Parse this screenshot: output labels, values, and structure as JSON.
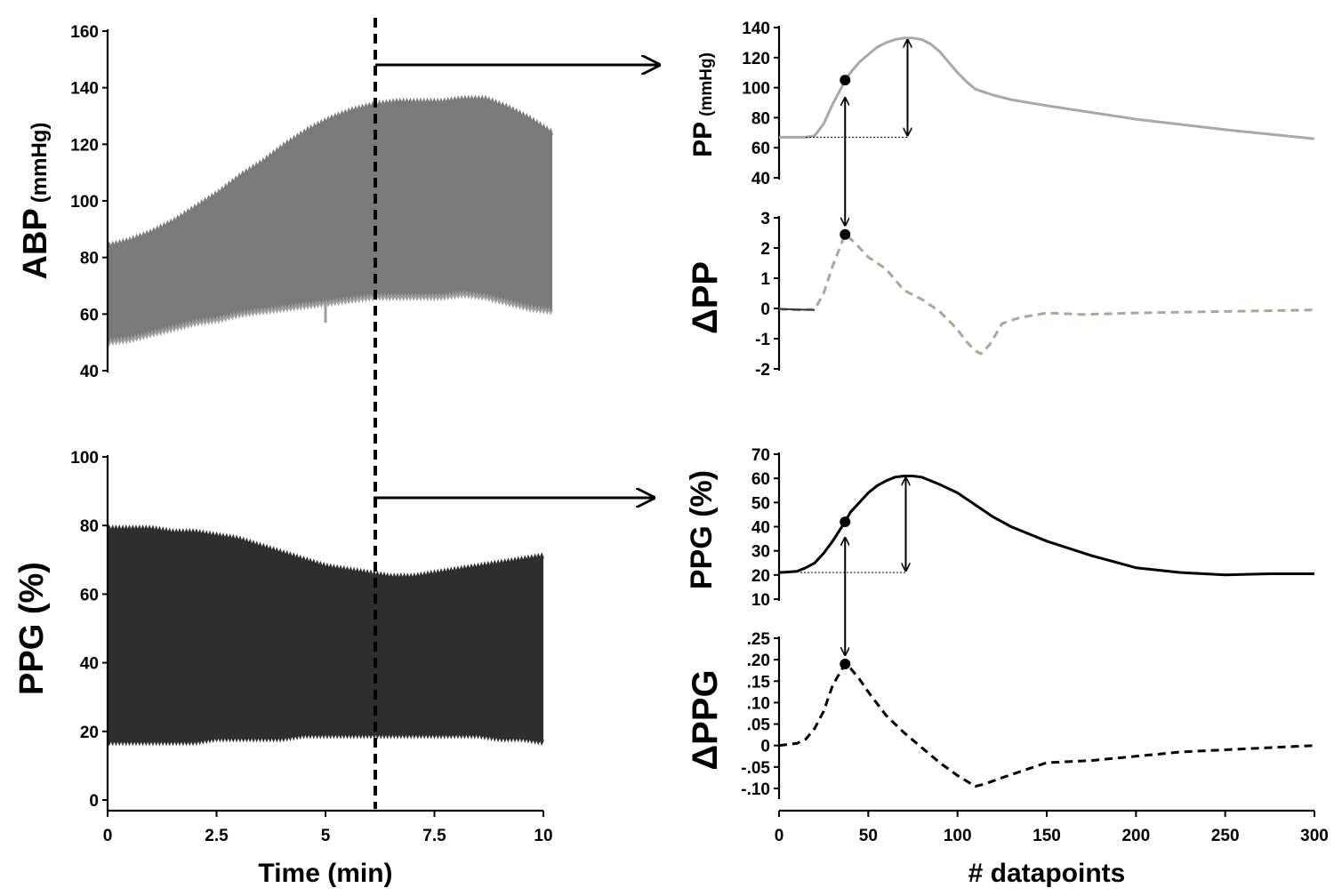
{
  "colors": {
    "abp": "#7a7a7a",
    "abp_light": "#9e9e9e",
    "ppg": "#2e2e2e",
    "pp_line": "#a8a8a8",
    "dpp_line": "#a0ab9a",
    "black": "#000000"
  },
  "chart_data": [
    {
      "id": "abp",
      "type": "area",
      "ylabel_main": "ABP",
      "ylabel_unit": "(mmHg)",
      "xlabel": "",
      "xlim": [
        0,
        10
      ],
      "ylim": [
        40,
        160
      ],
      "yticks": [
        "40",
        "60",
        "80",
        "100",
        "120",
        "140",
        "160"
      ],
      "xticks": [],
      "x": [
        0,
        0.5,
        1,
        1.5,
        2,
        2.5,
        3,
        3.5,
        4,
        4.5,
        5,
        5.5,
        6,
        6.5,
        7,
        7.5,
        8,
        8.5,
        9,
        9.5,
        10
      ],
      "upper": [
        84,
        86,
        89,
        93,
        98,
        103,
        109,
        114,
        120,
        125,
        129,
        132,
        134,
        135,
        135,
        135,
        136,
        136,
        133,
        129,
        124
      ],
      "lower": [
        50,
        51,
        53,
        55,
        57,
        58,
        60,
        61,
        62,
        63,
        64,
        65,
        66,
        66,
        66,
        66,
        67,
        66,
        64,
        62,
        61
      ]
    },
    {
      "id": "ppg",
      "type": "area",
      "ylabel_main": "PPG (%)",
      "xlabel": "Time (min)",
      "xlim": [
        0,
        10
      ],
      "ylim": [
        0,
        100
      ],
      "yticks": [
        "0",
        "20",
        "40",
        "60",
        "80",
        "100"
      ],
      "xticks": [
        "0",
        "2.5",
        "5",
        "7.5",
        "10"
      ],
      "x": [
        0,
        0.5,
        1,
        1.5,
        2,
        2.5,
        3,
        3.5,
        4,
        4.5,
        5,
        5.5,
        6,
        6.5,
        7,
        7.5,
        8,
        8.5,
        9,
        9.5,
        10
      ],
      "upper": [
        79,
        79,
        79,
        78,
        78,
        77,
        76,
        74,
        72,
        70,
        68,
        67,
        66,
        65,
        65,
        66,
        67,
        68,
        69,
        70,
        71
      ],
      "lower": [
        17,
        17,
        17,
        17,
        17,
        18,
        18,
        18,
        18,
        19,
        19,
        19,
        19,
        19,
        19,
        19,
        19,
        19,
        18,
        18,
        17
      ]
    },
    {
      "id": "pp",
      "type": "line",
      "ylabel_main": "PP",
      "ylabel_unit": "(mmHg)",
      "xlim": [
        0,
        300
      ],
      "ylim": [
        40,
        140
      ],
      "yticks": [
        "40",
        "60",
        "80",
        "100",
        "120",
        "140"
      ],
      "x": [
        0,
        15,
        20,
        25,
        30,
        35,
        37,
        40,
        45,
        50,
        55,
        60,
        65,
        70,
        75,
        80,
        85,
        90,
        95,
        100,
        105,
        110,
        115,
        120,
        130,
        150,
        200,
        250,
        300
      ],
      "y": [
        67,
        67,
        68,
        76,
        89,
        100,
        105,
        110,
        117,
        122,
        127,
        130,
        132,
        133,
        133,
        132,
        129,
        124,
        117,
        110,
        104,
        99,
        97,
        95,
        92,
        88,
        79,
        72,
        66
      ],
      "baseline": 67,
      "marker": {
        "x": 37,
        "y": 105
      },
      "arrow_x": 72
    },
    {
      "id": "dpp",
      "type": "line",
      "ylabel_main": "ΔPP",
      "xlim": [
        0,
        300
      ],
      "ylim": [
        -2,
        3
      ],
      "yticks": [
        "-2",
        "-1",
        "0",
        "1",
        "2",
        "3"
      ],
      "x": [
        0,
        10,
        20,
        25,
        30,
        37,
        42,
        50,
        55,
        60,
        70,
        80,
        90,
        100,
        105,
        110,
        113,
        118,
        125,
        135,
        150,
        170,
        200,
        250,
        300
      ],
      "y": [
        -0.02,
        -0.05,
        -0.03,
        0.5,
        1.4,
        2.45,
        2.2,
        1.7,
        1.5,
        1.3,
        0.6,
        0.3,
        -0.1,
        -0.7,
        -1.1,
        -1.4,
        -1.5,
        -1.2,
        -0.5,
        -0.3,
        -0.15,
        -0.2,
        -0.15,
        -0.1,
        -0.05
      ],
      "marker": {
        "x": 37,
        "y": 2.45
      }
    },
    {
      "id": "ppg_zoom",
      "type": "line",
      "ylabel_main": "PPG (%)",
      "xlim": [
        0,
        300
      ],
      "ylim": [
        10,
        70
      ],
      "yticks": [
        "10",
        "20",
        "30",
        "40",
        "50",
        "60",
        "70"
      ],
      "x": [
        0,
        10,
        15,
        20,
        25,
        30,
        37,
        40,
        45,
        50,
        55,
        60,
        65,
        70,
        75,
        80,
        85,
        90,
        100,
        110,
        120,
        130,
        150,
        175,
        200,
        225,
        250,
        275,
        300
      ],
      "y": [
        21,
        21.5,
        23,
        25,
        29,
        34,
        42,
        46,
        50,
        54,
        57,
        59,
        60.5,
        61,
        61,
        60.5,
        59,
        57.5,
        54,
        49,
        44,
        40,
        34,
        28,
        23,
        21,
        20,
        20.5,
        20.5
      ],
      "baseline": 21,
      "marker": {
        "x": 37,
        "y": 42
      },
      "arrow_x": 71
    },
    {
      "id": "dppg",
      "type": "line",
      "ylabel_main": "ΔPPG",
      "xlabel": "# datapoints",
      "xlim": [
        0,
        300
      ],
      "ylim": [
        -0.1,
        0.25
      ],
      "yticks": [
        "-.10",
        "-.05",
        "0",
        ".05",
        ".10",
        ".15",
        ".20",
        ".25"
      ],
      "xticks": [
        "0",
        "50",
        "100",
        "150",
        "200",
        "250",
        "300"
      ],
      "x": [
        0,
        10,
        15,
        20,
        25,
        30,
        37,
        40,
        45,
        50,
        60,
        70,
        80,
        90,
        100,
        110,
        115,
        125,
        150,
        175,
        200,
        225,
        250,
        275,
        300
      ],
      "y": [
        0,
        0.005,
        0.015,
        0.04,
        0.08,
        0.14,
        0.19,
        0.18,
        0.155,
        0.125,
        0.07,
        0.03,
        -0.005,
        -0.04,
        -0.07,
        -0.095,
        -0.09,
        -0.075,
        -0.04,
        -0.035,
        -0.025,
        -0.015,
        -0.01,
        -0.005,
        0
      ]
    }
  ]
}
